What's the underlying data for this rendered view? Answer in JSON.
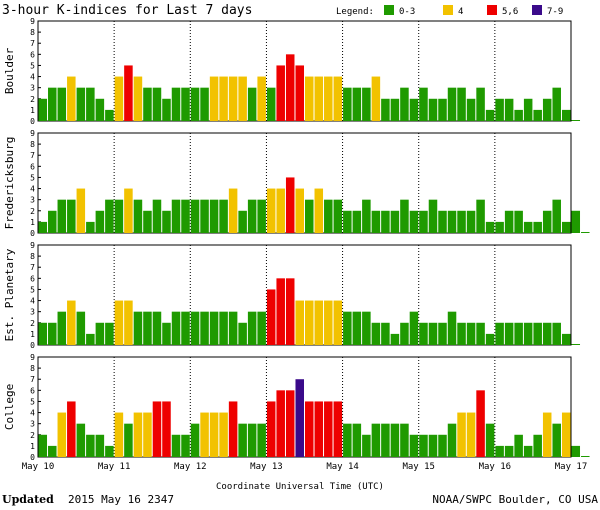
{
  "colors": {
    "quiet": "#1f9a00",
    "k4": "#f2c200",
    "k56": "#ee0000",
    "k79": "#3a0a8a"
  },
  "header": {
    "title": "3-hour K-indices for Last 7 days",
    "legend_label": "Legend:",
    "legend": [
      {
        "label": "0-3",
        "color": "#1f9a00"
      },
      {
        "label": "4",
        "color": "#f2c200"
      },
      {
        "label": "5,6",
        "color": "#ee0000"
      },
      {
        "label": "7-9",
        "color": "#3a0a8a"
      }
    ]
  },
  "footer": {
    "updated_label": "Updated",
    "updated_value": "2015 May 16 2347",
    "source": "NOAA/SWPC Boulder, CO USA"
  },
  "chart_data": {
    "type": "bar",
    "title": "3-hour K-indices for Last 7 days",
    "xlabel": "Coordinate Universal Time (UTC)",
    "ylim": [
      0,
      9
    ],
    "yticks": [
      "0",
      "1",
      "2",
      "3",
      "4",
      "5",
      "6",
      "7",
      "8",
      "9"
    ],
    "xticks": [
      "May 10",
      "May 11",
      "May 12",
      "May 13",
      "May 14",
      "May 15",
      "May 16",
      "May 17"
    ],
    "bins_per_day": 8,
    "series": [
      {
        "name": "Boulder",
        "values": [
          2,
          3,
          3,
          4,
          3,
          3,
          2,
          1,
          4,
          5,
          4,
          3,
          3,
          2,
          3,
          3,
          3,
          3,
          4,
          4,
          4,
          4,
          3,
          4,
          3,
          5,
          6,
          5,
          4,
          4,
          4,
          4,
          3,
          3,
          3,
          4,
          2,
          2,
          3,
          2,
          3,
          2,
          2,
          3,
          3,
          2,
          3,
          1,
          2,
          2,
          1,
          2,
          1,
          2,
          3,
          1,
          0
        ]
      },
      {
        "name": "Fredericksburg",
        "values": [
          1,
          2,
          3,
          3,
          4,
          1,
          2,
          3,
          3,
          4,
          3,
          2,
          3,
          2,
          3,
          3,
          3,
          3,
          3,
          3,
          4,
          2,
          3,
          3,
          4,
          4,
          5,
          4,
          3,
          4,
          3,
          3,
          2,
          2,
          3,
          2,
          2,
          2,
          3,
          2,
          2,
          3,
          2,
          2,
          2,
          2,
          3,
          1,
          1,
          2,
          2,
          1,
          1,
          2,
          3,
          1,
          2,
          0
        ]
      },
      {
        "name": "Est. Planetary",
        "values": [
          2,
          2,
          3,
          4,
          3,
          1,
          2,
          2,
          4,
          4,
          3,
          3,
          3,
          2,
          3,
          3,
          3,
          3,
          3,
          3,
          3,
          2,
          3,
          3,
          5,
          6,
          6,
          4,
          4,
          4,
          4,
          4,
          3,
          3,
          3,
          2,
          2,
          1,
          2,
          3,
          2,
          2,
          2,
          3,
          2,
          2,
          2,
          1,
          2,
          2,
          2,
          2,
          2,
          2,
          2,
          1,
          0
        ]
      },
      {
        "name": "College",
        "values": [
          2,
          1,
          4,
          5,
          3,
          2,
          2,
          1,
          4,
          3,
          4,
          4,
          5,
          5,
          2,
          2,
          3,
          4,
          4,
          4,
          5,
          3,
          3,
          3,
          5,
          6,
          6,
          7,
          5,
          5,
          5,
          5,
          3,
          3,
          2,
          3,
          3,
          3,
          3,
          2,
          2,
          2,
          2,
          3,
          4,
          4,
          6,
          3,
          1,
          1,
          2,
          1,
          2,
          4,
          3,
          4,
          1,
          0
        ]
      }
    ]
  }
}
